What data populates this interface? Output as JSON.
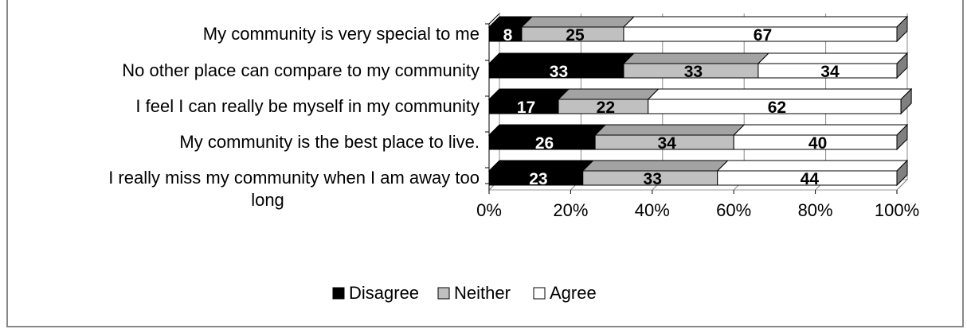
{
  "chart_data": {
    "type": "bar",
    "stacked": "percent",
    "orientation": "horizontal",
    "style": "3d",
    "categories": [
      "My community is very special to me",
      "No other place can compare to my community",
      "I feel I can really be myself in my community",
      "My community is the best place to live.",
      "I really miss my community when I am away too long"
    ],
    "category_lines": [
      [
        "My community is very special to me"
      ],
      [
        "No other place can compare to my community"
      ],
      [
        "I feel I can really be myself in my community"
      ],
      [
        "My community is the best place to live."
      ],
      [
        "I really miss my community when I am away too",
        "long"
      ]
    ],
    "series": [
      {
        "name": "Disagree",
        "color": "#000000",
        "label_color": "#ffffff",
        "values": [
          8,
          33,
          17,
          26,
          23
        ]
      },
      {
        "name": "Neither",
        "color": "#c0c0c0",
        "label_color": "#000000",
        "values": [
          25,
          33,
          22,
          34,
          33
        ]
      },
      {
        "name": "Agree",
        "color": "#ffffff",
        "label_color": "#000000",
        "values": [
          67,
          34,
          62,
          40,
          44
        ]
      }
    ],
    "xticks": [
      "0%",
      "20%",
      "40%",
      "60%",
      "80%",
      "100%"
    ],
    "xlim": [
      0,
      100
    ],
    "grid": true,
    "legend_position": "bottom"
  }
}
